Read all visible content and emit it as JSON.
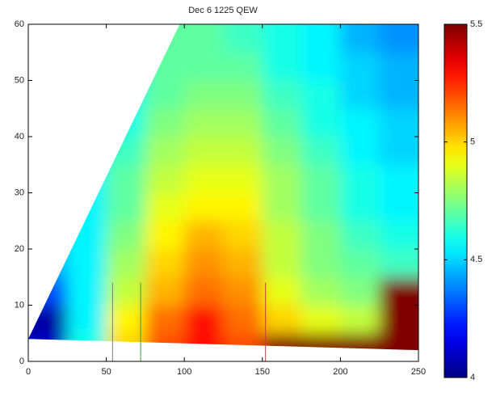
{
  "chart_data": {
    "type": "heatmap",
    "title": "Dec 6 1225 QEW",
    "xbins": [
      0,
      25,
      50,
      75,
      100,
      125,
      150,
      175,
      200,
      225,
      250
    ],
    "ybins": [
      0,
      5,
      10,
      15,
      20,
      25,
      30,
      35,
      40,
      45,
      50,
      55,
      60
    ],
    "z": [
      [
        4.1,
        4.6,
        5.0,
        5.2,
        5.3,
        5.2,
        5.5,
        5.5,
        5.5,
        5.5
      ],
      [
        4.05,
        4.55,
        4.95,
        5.15,
        5.3,
        5.15,
        5.0,
        4.9,
        4.85,
        5.5
      ],
      [
        4.3,
        4.55,
        4.85,
        5.05,
        5.15,
        5.1,
        4.9,
        4.8,
        4.75,
        5.5
      ],
      [
        4.45,
        4.55,
        4.8,
        5.0,
        5.1,
        5.05,
        4.85,
        4.75,
        4.7,
        4.65
      ],
      [
        4.5,
        4.55,
        4.75,
        4.95,
        5.05,
        5.0,
        4.85,
        4.75,
        4.65,
        4.6
      ],
      [
        4.5,
        4.55,
        4.7,
        4.9,
        4.95,
        4.95,
        4.8,
        4.7,
        4.6,
        4.55
      ],
      [
        4.5,
        4.55,
        4.7,
        4.85,
        4.9,
        4.9,
        4.8,
        4.7,
        4.6,
        4.55
      ],
      [
        4.5,
        4.55,
        4.65,
        4.8,
        4.85,
        4.85,
        4.75,
        4.65,
        4.55,
        4.5
      ],
      [
        4.5,
        4.55,
        4.6,
        4.75,
        4.8,
        4.8,
        4.7,
        4.6,
        4.55,
        4.5
      ],
      [
        4.5,
        4.55,
        4.6,
        4.7,
        4.75,
        4.75,
        4.65,
        4.6,
        4.5,
        4.45
      ],
      [
        4.5,
        4.55,
        4.6,
        4.7,
        4.7,
        4.7,
        4.6,
        4.55,
        4.5,
        4.45
      ],
      [
        4.5,
        4.55,
        4.6,
        4.7,
        4.7,
        4.65,
        4.6,
        4.55,
        4.45,
        4.4
      ]
    ],
    "data_region": [
      [
        0,
        4
      ],
      [
        97,
        60
      ],
      [
        250,
        60
      ],
      [
        250,
        2
      ]
    ],
    "vlines": [
      {
        "x": 54,
        "ymax": 14,
        "color": "#7a7a7a"
      },
      {
        "x": 72,
        "ymax": 14,
        "color": "#3a9a3a"
      },
      {
        "x": 152,
        "ymax": 14,
        "color": "#c04040"
      }
    ],
    "xlim": [
      0,
      250
    ],
    "xticks": [
      0,
      50,
      100,
      150,
      200,
      250
    ],
    "ylim": [
      0,
      60
    ],
    "yticks": [
      0,
      10,
      20,
      30,
      40,
      50,
      60
    ],
    "clim": [
      4,
      5.5
    ],
    "cticks": [
      4,
      4.5,
      5,
      5.5
    ],
    "colormap": "jet",
    "grid": false
  }
}
